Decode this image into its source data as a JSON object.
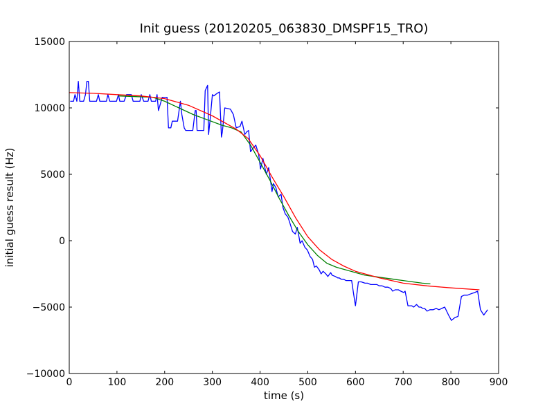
{
  "chart_data": {
    "type": "line",
    "title": "Init guess (20120205_063830_DMSPF15_TRO)",
    "xlabel": "time (s)",
    "ylabel": "initial guess result (Hz)",
    "xlim": [
      0,
      900
    ],
    "ylim": [
      -10000,
      15000
    ],
    "xticks": [
      0,
      100,
      200,
      300,
      400,
      500,
      600,
      700,
      800,
      900
    ],
    "yticks": [
      -10000,
      -5000,
      0,
      5000,
      10000,
      15000
    ],
    "xtick_labels": [
      "0",
      "100",
      "200",
      "300",
      "400",
      "500",
      "600",
      "700",
      "800",
      "900"
    ],
    "ytick_labels": [
      "−10000",
      "−5000",
      "0",
      "5000",
      "10000",
      "15000"
    ],
    "grid": false,
    "series": [
      {
        "color": "#0000ff",
        "points": [
          [
            2,
            10500
          ],
          [
            9,
            10500
          ],
          [
            12,
            11000
          ],
          [
            16,
            10500
          ],
          [
            19,
            12000
          ],
          [
            22,
            10500
          ],
          [
            30,
            10500
          ],
          [
            34,
            11000
          ],
          [
            37,
            12000
          ],
          [
            40,
            12000
          ],
          [
            43,
            10500
          ],
          [
            57,
            10500
          ],
          [
            61,
            11000
          ],
          [
            64,
            10500
          ],
          [
            78,
            10500
          ],
          [
            81,
            11000
          ],
          [
            85,
            10500
          ],
          [
            99,
            10500
          ],
          [
            103,
            11000
          ],
          [
            106,
            10500
          ],
          [
            115,
            10500
          ],
          [
            120,
            11000
          ],
          [
            130,
            11000
          ],
          [
            134,
            10500
          ],
          [
            148,
            10500
          ],
          [
            151,
            11000
          ],
          [
            156,
            10500
          ],
          [
            165,
            10500
          ],
          [
            169,
            11000
          ],
          [
            172,
            10500
          ],
          [
            181,
            10500
          ],
          [
            184,
            11000
          ],
          [
            187,
            9800
          ],
          [
            195,
            10800
          ],
          [
            205,
            10800
          ],
          [
            208,
            8500
          ],
          [
            213,
            8500
          ],
          [
            216,
            9000
          ],
          [
            227,
            9000
          ],
          [
            233,
            10500
          ],
          [
            236,
            9500
          ],
          [
            241,
            8500
          ],
          [
            244,
            8300
          ],
          [
            259,
            8300
          ],
          [
            264,
            9800
          ],
          [
            266,
            9800
          ],
          [
            268,
            8300
          ],
          [
            282,
            8300
          ],
          [
            285,
            11300
          ],
          [
            290,
            11700
          ],
          [
            292,
            8000
          ],
          [
            295,
            9000
          ],
          [
            300,
            11000
          ],
          [
            303,
            10900
          ],
          [
            310,
            11100
          ],
          [
            315,
            11200
          ],
          [
            319,
            7800
          ],
          [
            321,
            8200
          ],
          [
            326,
            10000
          ],
          [
            338,
            9900
          ],
          [
            344,
            9500
          ],
          [
            350,
            8500
          ],
          [
            358,
            8600
          ],
          [
            362,
            9000
          ],
          [
            368,
            8000
          ],
          [
            372,
            8200
          ],
          [
            376,
            8300
          ],
          [
            380,
            6700
          ],
          [
            386,
            7000
          ],
          [
            391,
            7200
          ],
          [
            397,
            6500
          ],
          [
            401,
            5400
          ],
          [
            406,
            6200
          ],
          [
            413,
            5000
          ],
          [
            418,
            5500
          ],
          [
            425,
            3700
          ],
          [
            428,
            4300
          ],
          [
            433,
            4000
          ],
          [
            438,
            3300
          ],
          [
            444,
            3500
          ],
          [
            448,
            2500
          ],
          [
            453,
            2000
          ],
          [
            458,
            1800
          ],
          [
            461,
            1500
          ],
          [
            468,
            700
          ],
          [
            474,
            500
          ],
          [
            478,
            1000
          ],
          [
            484,
            -200
          ],
          [
            488,
            0
          ],
          [
            494,
            -500
          ],
          [
            499,
            -700
          ],
          [
            505,
            -1200
          ],
          [
            510,
            -1400
          ],
          [
            514,
            -2000
          ],
          [
            518,
            -1900
          ],
          [
            524,
            -2200
          ],
          [
            528,
            -2500
          ],
          [
            532,
            -2300
          ],
          [
            538,
            -2500
          ],
          [
            542,
            -2700
          ],
          [
            548,
            -2400
          ],
          [
            551,
            -2600
          ],
          [
            558,
            -2700
          ],
          [
            563,
            -2800
          ],
          [
            566,
            -2800
          ],
          [
            570,
            -2900
          ],
          [
            575,
            -2900
          ],
          [
            580,
            -3000
          ],
          [
            585,
            -3000
          ],
          [
            592,
            -3000
          ],
          [
            596,
            -4000
          ],
          [
            600,
            -4900
          ],
          [
            606,
            -3100
          ],
          [
            612,
            -3100
          ],
          [
            620,
            -3200
          ],
          [
            625,
            -3200
          ],
          [
            632,
            -3300
          ],
          [
            638,
            -3300
          ],
          [
            645,
            -3300
          ],
          [
            650,
            -3400
          ],
          [
            656,
            -3400
          ],
          [
            662,
            -3500
          ],
          [
            668,
            -3500
          ],
          [
            674,
            -3600
          ],
          [
            678,
            -3800
          ],
          [
            683,
            -3700
          ],
          [
            690,
            -3700
          ],
          [
            695,
            -3800
          ],
          [
            701,
            -3900
          ],
          [
            704,
            -3800
          ],
          [
            710,
            -4900
          ],
          [
            718,
            -4900
          ],
          [
            722,
            -5000
          ],
          [
            728,
            -4800
          ],
          [
            733,
            -5000
          ],
          [
            737,
            -5000
          ],
          [
            741,
            -5100
          ],
          [
            745,
            -5100
          ],
          [
            750,
            -5300
          ],
          [
            756,
            -5200
          ],
          [
            763,
            -5200
          ],
          [
            769,
            -5100
          ],
          [
            775,
            -5200
          ],
          [
            781,
            -5100
          ],
          [
            787,
            -5000
          ],
          [
            795,
            -5600
          ],
          [
            801,
            -6000
          ],
          [
            808,
            -5800
          ],
          [
            815,
            -5700
          ],
          [
            822,
            -4200
          ],
          [
            828,
            -4100
          ],
          [
            835,
            -4100
          ],
          [
            842,
            -4000
          ],
          [
            850,
            -3900
          ],
          [
            856,
            -3800
          ],
          [
            862,
            -5200
          ],
          [
            869,
            -5600
          ],
          [
            877,
            -5200
          ]
        ]
      },
      {
        "color": "#008000",
        "points": [
          [
            103,
            10900
          ],
          [
            140,
            10850
          ],
          [
            175,
            10800
          ],
          [
            200,
            10500
          ],
          [
            230,
            10000
          ],
          [
            260,
            9500
          ],
          [
            290,
            9100
          ],
          [
            320,
            8700
          ],
          [
            340,
            8500
          ],
          [
            360,
            8200
          ],
          [
            380,
            7200
          ],
          [
            400,
            5900
          ],
          [
            420,
            4600
          ],
          [
            440,
            3200
          ],
          [
            460,
            1900
          ],
          [
            480,
            700
          ],
          [
            500,
            -300
          ],
          [
            520,
            -1100
          ],
          [
            540,
            -1700
          ],
          [
            560,
            -2000
          ],
          [
            580,
            -2200
          ],
          [
            600,
            -2400
          ],
          [
            620,
            -2600
          ],
          [
            640,
            -2700
          ],
          [
            660,
            -2800
          ],
          [
            680,
            -2900
          ],
          [
            700,
            -3000
          ],
          [
            720,
            -3100
          ],
          [
            740,
            -3200
          ],
          [
            757,
            -3250
          ]
        ]
      },
      {
        "color": "#ff0000",
        "points": [
          [
            0,
            11150
          ],
          [
            50,
            11100
          ],
          [
            100,
            11000
          ],
          [
            150,
            10900
          ],
          [
            200,
            10700
          ],
          [
            250,
            10200
          ],
          [
            300,
            9400
          ],
          [
            350,
            8400
          ],
          [
            375,
            7700
          ],
          [
            400,
            6400
          ],
          [
            425,
            4800
          ],
          [
            450,
            3300
          ],
          [
            475,
            1700
          ],
          [
            500,
            300
          ],
          [
            525,
            -700
          ],
          [
            550,
            -1400
          ],
          [
            575,
            -1900
          ],
          [
            600,
            -2300
          ],
          [
            650,
            -2800
          ],
          [
            700,
            -3200
          ],
          [
            750,
            -3400
          ],
          [
            800,
            -3550
          ],
          [
            860,
            -3700
          ]
        ]
      }
    ]
  }
}
